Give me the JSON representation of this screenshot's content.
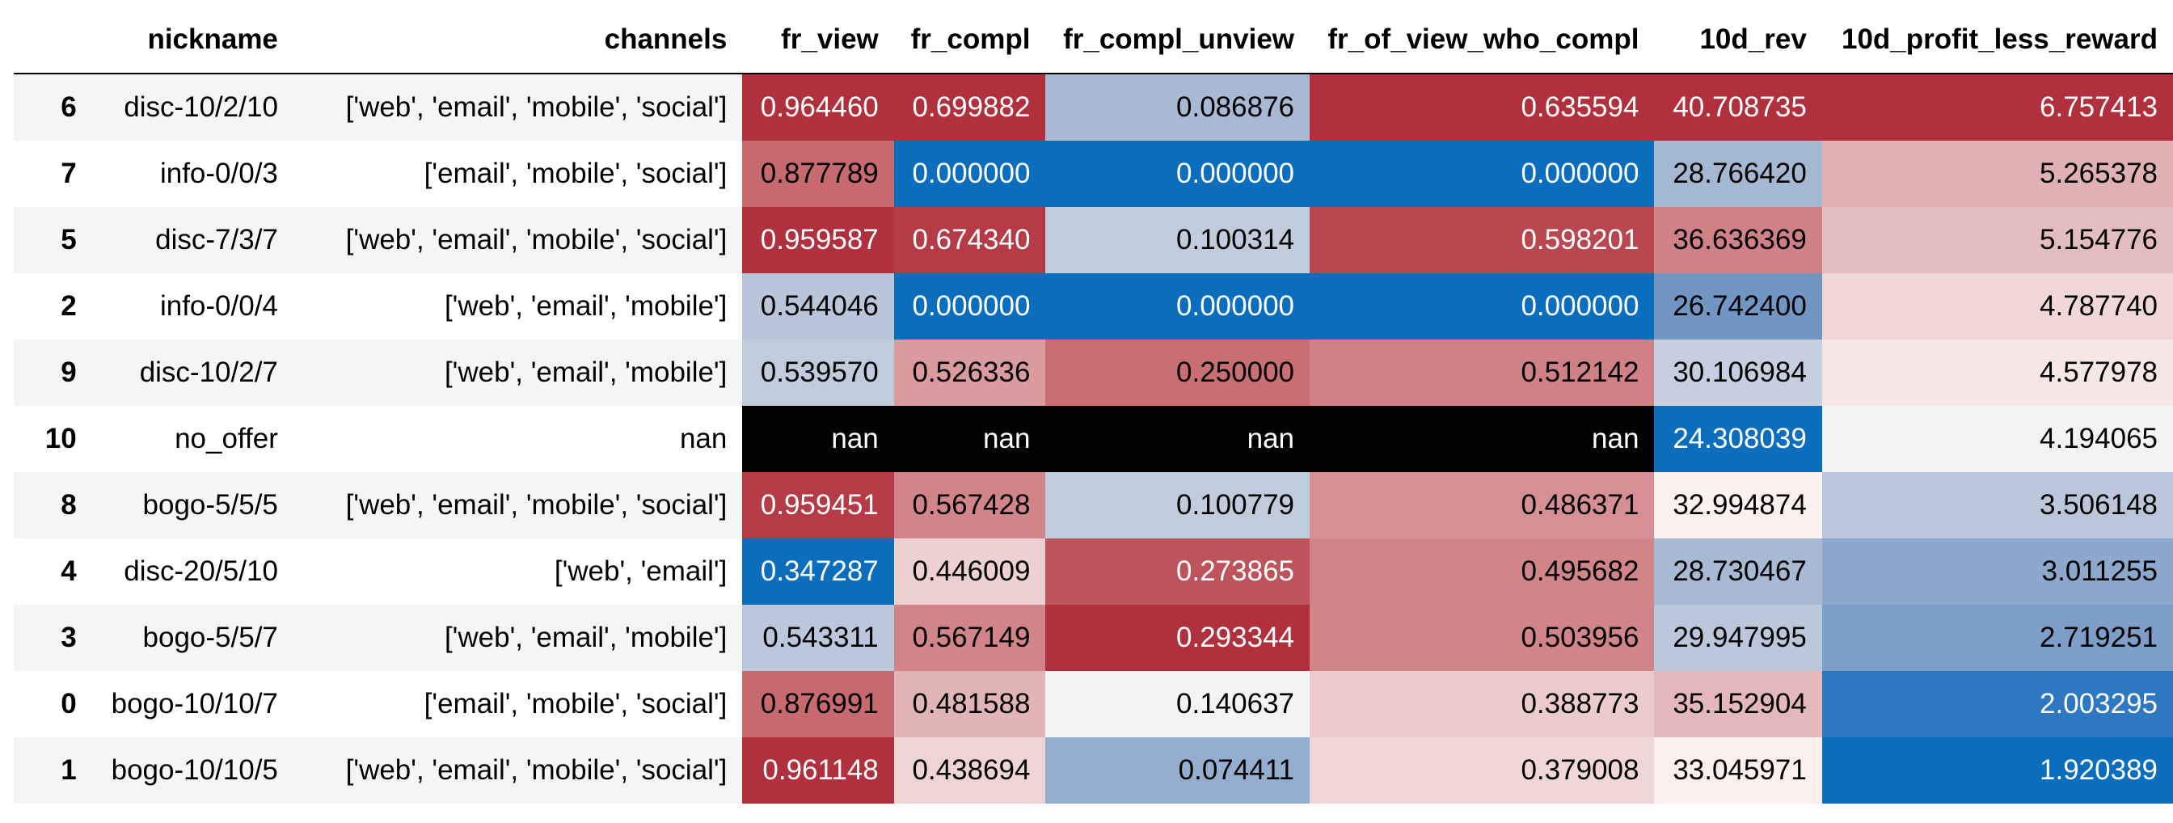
{
  "table": {
    "index_header": "",
    "columns": [
      "nickname",
      "channels",
      "fr_view",
      "fr_compl",
      "fr_compl_unview",
      "fr_of_view_who_compl",
      "10d_rev",
      "10d_profit_less_reward"
    ],
    "rows": [
      {
        "index": "6",
        "cells": [
          {
            "text": "disc-10/2/10"
          },
          {
            "text": "['web', 'email', 'mobile', 'social']"
          },
          {
            "text": "0.964460",
            "bg": "#b0313d",
            "fg": "#ffffff"
          },
          {
            "text": "0.699882",
            "bg": "#b0313d",
            "fg": "#ffffff"
          },
          {
            "text": "0.086876",
            "bg": "#a7b9d3",
            "fg": "#000000"
          },
          {
            "text": "0.635594",
            "bg": "#b0313d",
            "fg": "#ffffff"
          },
          {
            "text": "40.708735",
            "bg": "#b0313d",
            "fg": "#ffffff"
          },
          {
            "text": "6.757413",
            "bg": "#b0313d",
            "fg": "#ffffff"
          }
        ]
      },
      {
        "index": "7",
        "cells": [
          {
            "text": "info-0/0/3"
          },
          {
            "text": "['email', 'mobile', 'social']"
          },
          {
            "text": "0.877789",
            "bg": "#c66a6f",
            "fg": "#000000"
          },
          {
            "text": "0.000000",
            "bg": "#0a6ebd",
            "fg": "#ffffff"
          },
          {
            "text": "0.000000",
            "bg": "#0a6ebd",
            "fg": "#ffffff"
          },
          {
            "text": "0.000000",
            "bg": "#0a6ebd",
            "fg": "#ffffff"
          },
          {
            "text": "28.766420",
            "bg": "#a5b8d2",
            "fg": "#000000"
          },
          {
            "text": "5.265378",
            "bg": "#dfb1b3",
            "fg": "#000000"
          }
        ]
      },
      {
        "index": "5",
        "cells": [
          {
            "text": "disc-7/3/7"
          },
          {
            "text": "['web', 'email', 'mobile', 'social']"
          },
          {
            "text": "0.959587",
            "bg": "#b0313d",
            "fg": "#ffffff"
          },
          {
            "text": "0.674340",
            "bg": "#b53c47",
            "fg": "#ffffff"
          },
          {
            "text": "0.100314",
            "bg": "#c0cbdc",
            "fg": "#000000"
          },
          {
            "text": "0.598201",
            "bg": "#b84750",
            "fg": "#ffffff"
          },
          {
            "text": "36.636369",
            "bg": "#cf8185",
            "fg": "#000000"
          },
          {
            "text": "5.154776",
            "bg": "#e3bcbe",
            "fg": "#000000"
          }
        ]
      },
      {
        "index": "2",
        "cells": [
          {
            "text": "info-0/0/4"
          },
          {
            "text": "['web', 'email', 'mobile']"
          },
          {
            "text": "0.544046",
            "bg": "#b9c6da",
            "fg": "#000000"
          },
          {
            "text": "0.000000",
            "bg": "#0a6ebd",
            "fg": "#ffffff"
          },
          {
            "text": "0.000000",
            "bg": "#0a6ebd",
            "fg": "#ffffff"
          },
          {
            "text": "0.000000",
            "bg": "#0a6ebd",
            "fg": "#ffffff"
          },
          {
            "text": "26.742400",
            "bg": "#7196c4",
            "fg": "#000000"
          },
          {
            "text": "4.787740",
            "bg": "#f0d8d9",
            "fg": "#000000"
          }
        ]
      },
      {
        "index": "9",
        "cells": [
          {
            "text": "disc-10/2/7"
          },
          {
            "text": "['web', 'email', 'mobile']"
          },
          {
            "text": "0.539570",
            "bg": "#c0cbdc",
            "fg": "#000000"
          },
          {
            "text": "0.526336",
            "bg": "#d99b9e",
            "fg": "#000000"
          },
          {
            "text": "0.250000",
            "bg": "#c96f74",
            "fg": "#000000"
          },
          {
            "text": "0.512142",
            "bg": "#cf8185",
            "fg": "#000000"
          },
          {
            "text": "30.106984",
            "bg": "#c5cfdf",
            "fg": "#000000"
          },
          {
            "text": "4.577978",
            "bg": "#f6e6e7",
            "fg": "#000000"
          }
        ]
      },
      {
        "index": "10",
        "cells": [
          {
            "text": "no_offer"
          },
          {
            "text": "nan"
          },
          {
            "text": "nan",
            "bg": "#000000",
            "fg": "#ffffff"
          },
          {
            "text": "nan",
            "bg": "#000000",
            "fg": "#ffffff"
          },
          {
            "text": "nan",
            "bg": "#000000",
            "fg": "#ffffff"
          },
          {
            "text": "nan",
            "bg": "#000000",
            "fg": "#ffffff"
          },
          {
            "text": "24.308039",
            "bg": "#0a6ebd",
            "fg": "#ffffff"
          },
          {
            "text": "4.194065",
            "bg": "#f3f3f3",
            "fg": "#000000"
          }
        ]
      },
      {
        "index": "8",
        "cells": [
          {
            "text": "bogo-5/5/5"
          },
          {
            "text": "['web', 'email', 'mobile', 'social']"
          },
          {
            "text": "0.959451",
            "bg": "#b53c47",
            "fg": "#ffffff"
          },
          {
            "text": "0.567428",
            "bg": "#d18589",
            "fg": "#000000"
          },
          {
            "text": "0.100779",
            "bg": "#c0cbdc",
            "fg": "#000000"
          },
          {
            "text": "0.486371",
            "bg": "#d68f92",
            "fg": "#000000"
          },
          {
            "text": "32.994874",
            "bg": "#fcf1f1",
            "fg": "#000000"
          },
          {
            "text": "3.506148",
            "bg": "#bac7da",
            "fg": "#000000"
          }
        ]
      },
      {
        "index": "4",
        "cells": [
          {
            "text": "disc-20/5/10"
          },
          {
            "text": "['web', 'email']"
          },
          {
            "text": "0.347287",
            "bg": "#0a6ebd",
            "fg": "#ffffff"
          },
          {
            "text": "0.446009",
            "bg": "#edd0d1",
            "fg": "#000000"
          },
          {
            "text": "0.273865",
            "bg": "#bd545c",
            "fg": "#ffffff"
          },
          {
            "text": "0.495682",
            "bg": "#d18589",
            "fg": "#000000"
          },
          {
            "text": "28.730467",
            "bg": "#a7b9d3",
            "fg": "#000000"
          },
          {
            "text": "3.011255",
            "bg": "#8ca8cd",
            "fg": "#000000"
          }
        ]
      },
      {
        "index": "3",
        "cells": [
          {
            "text": "bogo-5/5/7"
          },
          {
            "text": "['web', 'email', 'mobile']"
          },
          {
            "text": "0.543311",
            "bg": "#bbc7da",
            "fg": "#000000"
          },
          {
            "text": "0.567149",
            "bg": "#d18589",
            "fg": "#000000"
          },
          {
            "text": "0.293344",
            "bg": "#b0313d",
            "fg": "#ffffff"
          },
          {
            "text": "0.503956",
            "bg": "#d18589",
            "fg": "#000000"
          },
          {
            "text": "29.947995",
            "bg": "#bbc7da",
            "fg": "#000000"
          },
          {
            "text": "2.719251",
            "bg": "#7d9ec9",
            "fg": "#000000"
          }
        ]
      },
      {
        "index": "0",
        "cells": [
          {
            "text": "bogo-10/10/7"
          },
          {
            "text": "['email', 'mobile', 'social']"
          },
          {
            "text": "0.876991",
            "bg": "#c66a6f",
            "fg": "#000000"
          },
          {
            "text": "0.481588",
            "bg": "#e1b4b6",
            "fg": "#000000"
          },
          {
            "text": "0.140637",
            "bg": "#f4f2f2",
            "fg": "#000000"
          },
          {
            "text": "0.388773",
            "bg": "#ebcbcc",
            "fg": "#000000"
          },
          {
            "text": "35.152904",
            "bg": "#e4b8ba",
            "fg": "#000000"
          },
          {
            "text": "2.003295",
            "bg": "#2d78c0",
            "fg": "#ffffff"
          }
        ]
      },
      {
        "index": "1",
        "cells": [
          {
            "text": "bogo-10/10/5"
          },
          {
            "text": "['web', 'email', 'mobile', 'social']"
          },
          {
            "text": "0.961148",
            "bg": "#b0313d",
            "fg": "#ffffff"
          },
          {
            "text": "0.438694",
            "bg": "#efd4d5",
            "fg": "#000000"
          },
          {
            "text": "0.074411",
            "bg": "#95adcf",
            "fg": "#000000"
          },
          {
            "text": "0.379008",
            "bg": "#efd6d7",
            "fg": "#000000"
          },
          {
            "text": "33.045971",
            "bg": "#fbefef",
            "fg": "#000000"
          },
          {
            "text": "1.920389",
            "bg": "#0a6ebd",
            "fg": "#ffffff"
          }
        ]
      }
    ]
  }
}
